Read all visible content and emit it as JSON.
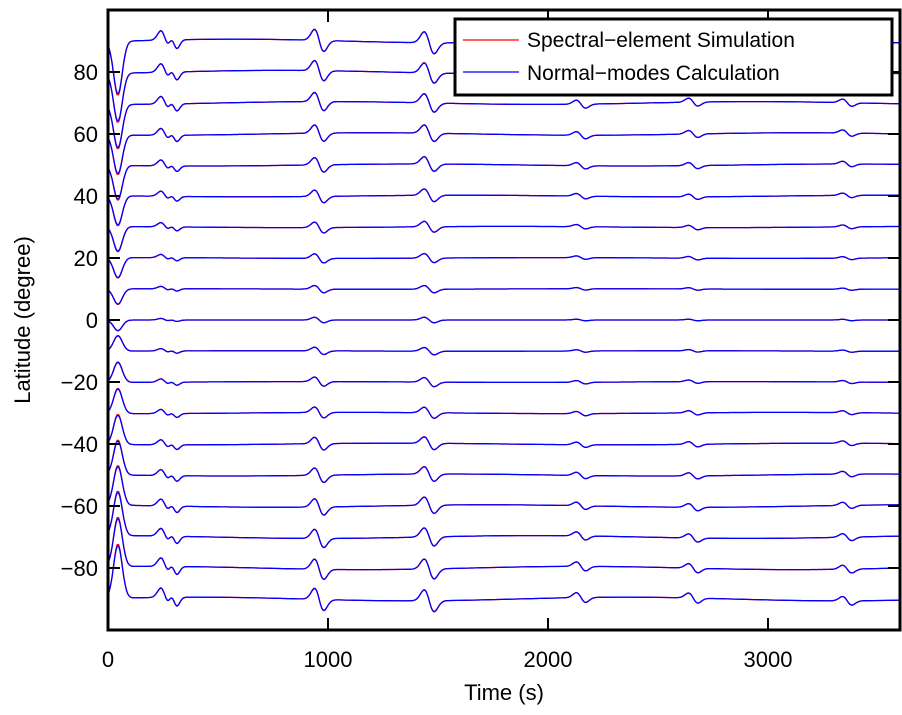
{
  "chart_data": {
    "type": "line",
    "xlabel": "Time (s)",
    "ylabel": "Latitude (degree)",
    "xlim": [
      0,
      3600
    ],
    "ylim": [
      -100,
      100
    ],
    "x_ticks": [
      0,
      1000,
      2000,
      3000
    ],
    "y_ticks": [
      -80,
      -60,
      -40,
      -20,
      0,
      20,
      40,
      60,
      80
    ],
    "grid": false,
    "legend_position": "top-right",
    "trace_offsets": [
      90,
      80,
      70,
      60,
      50,
      40,
      30,
      20,
      10,
      0,
      -10,
      -20,
      -30,
      -40,
      -50,
      -60,
      -70,
      -80,
      -90
    ],
    "wave_arrivals_s": [
      50,
      260,
      300,
      960,
      1460,
      2150,
      2660,
      3360
    ],
    "series": [
      {
        "name": "Spectral−element Simulation",
        "color": "#ff0000"
      },
      {
        "name": "Normal−modes Calculation",
        "color": "#0000ff"
      }
    ]
  }
}
